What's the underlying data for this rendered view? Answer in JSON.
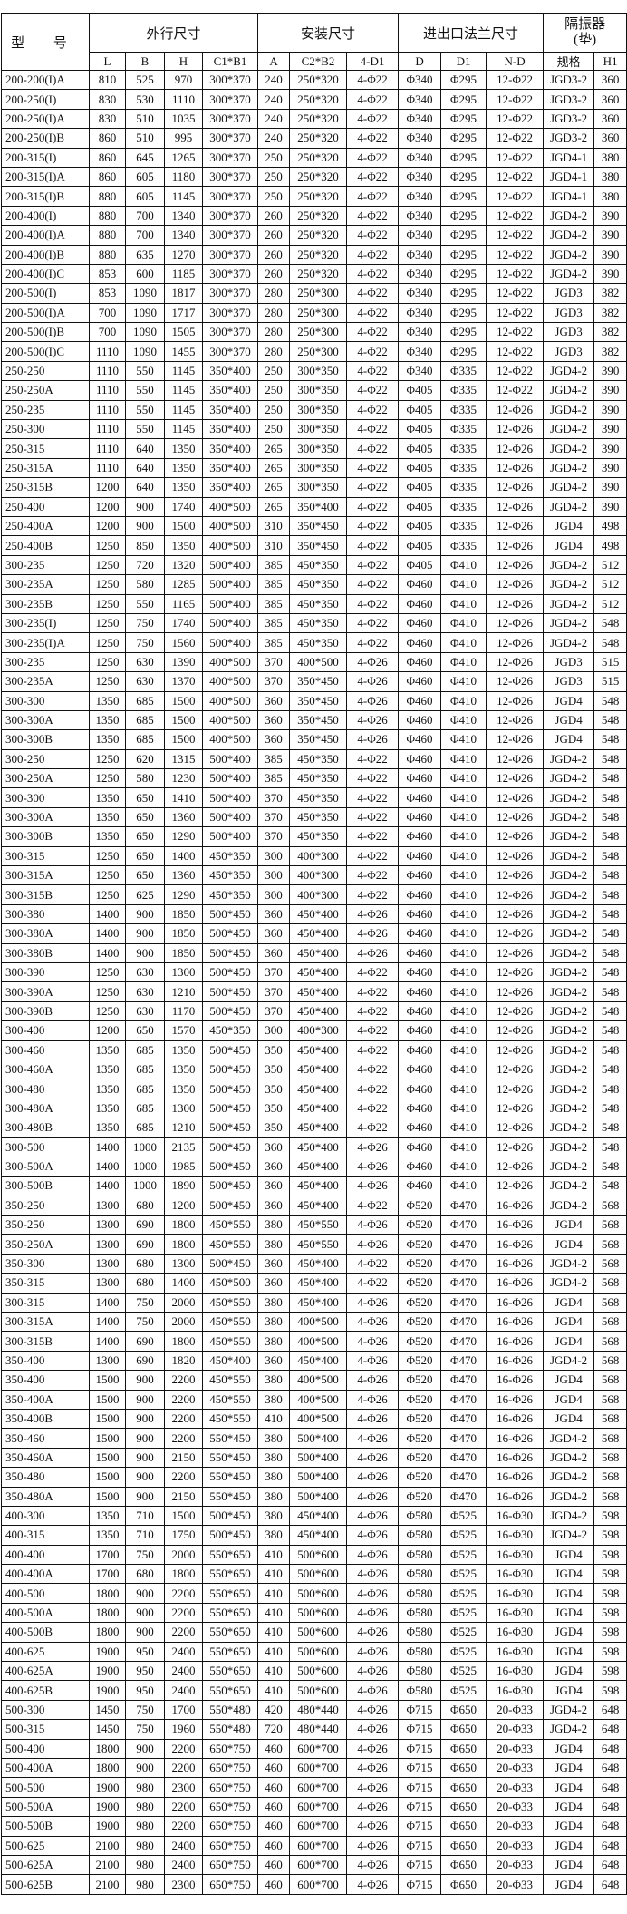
{
  "header": {
    "model": "型 号",
    "groups": [
      "外行尺寸",
      "安装尺寸",
      "进出口法兰尺寸",
      "隔振器",
      "(垫)"
    ],
    "columns": [
      "L",
      "B",
      "H",
      "C1*B1",
      "A",
      "C2*B2",
      "4-D1",
      "D",
      "D1",
      "N-D",
      "规格",
      "H1"
    ]
  },
  "rows": [
    [
      "200-200(I)A",
      "810",
      "525",
      "970",
      "300*370",
      "240",
      "250*320",
      "4-Φ22",
      "Φ340",
      "Φ295",
      "12-Φ22",
      "JGD3-2",
      "360"
    ],
    [
      "200-250(I)",
      "830",
      "530",
      "1110",
      "300*370",
      "240",
      "250*320",
      "4-Φ22",
      "Φ340",
      "Φ295",
      "12-Φ22",
      "JGD3-2",
      "360"
    ],
    [
      "200-250(I)A",
      "830",
      "510",
      "1035",
      "300*370",
      "240",
      "250*320",
      "4-Φ22",
      "Φ340",
      "Φ295",
      "12-Φ22",
      "JGD3-2",
      "360"
    ],
    [
      "200-250(I)B",
      "860",
      "510",
      "995",
      "300*370",
      "240",
      "250*320",
      "4-Φ22",
      "Φ340",
      "Φ295",
      "12-Φ22",
      "JGD3-2",
      "360"
    ],
    [
      "200-315(I)",
      "860",
      "645",
      "1265",
      "300*370",
      "250",
      "250*320",
      "4-Φ22",
      "Φ340",
      "Φ295",
      "12-Φ22",
      "JGD4-1",
      "380"
    ],
    [
      "200-315(I)A",
      "860",
      "605",
      "1180",
      "300*370",
      "250",
      "250*320",
      "4-Φ22",
      "Φ340",
      "Φ295",
      "12-Φ22",
      "JGD4-1",
      "380"
    ],
    [
      "200-315(I)B",
      "880",
      "605",
      "1145",
      "300*370",
      "250",
      "250*320",
      "4-Φ22",
      "Φ340",
      "Φ295",
      "12-Φ22",
      "JGD4-1",
      "380"
    ],
    [
      "200-400(I)",
      "880",
      "700",
      "1340",
      "300*370",
      "260",
      "250*320",
      "4-Φ22",
      "Φ340",
      "Φ295",
      "12-Φ22",
      "JGD4-2",
      "390"
    ],
    [
      "200-400(I)A",
      "880",
      "700",
      "1340",
      "300*370",
      "260",
      "250*320",
      "4-Φ22",
      "Φ340",
      "Φ295",
      "12-Φ22",
      "JGD4-2",
      "390"
    ],
    [
      "200-400(I)B",
      "880",
      "635",
      "1270",
      "300*370",
      "260",
      "250*320",
      "4-Φ22",
      "Φ340",
      "Φ295",
      "12-Φ22",
      "JGD4-2",
      "390"
    ],
    [
      "200-400(I)C",
      "853",
      "600",
      "1185",
      "300*370",
      "260",
      "250*320",
      "4-Φ22",
      "Φ340",
      "Φ295",
      "12-Φ22",
      "JGD4-2",
      "390"
    ],
    [
      "200-500(I)",
      "853",
      "1090",
      "1817",
      "300*370",
      "280",
      "250*300",
      "4-Φ22",
      "Φ340",
      "Φ295",
      "12-Φ22",
      "JGD3",
      "382"
    ],
    [
      "200-500(I)A",
      "700",
      "1090",
      "1717",
      "300*370",
      "280",
      "250*300",
      "4-Φ22",
      "Φ340",
      "Φ295",
      "12-Φ22",
      "JGD3",
      "382"
    ],
    [
      "200-500(I)B",
      "700",
      "1090",
      "1505",
      "300*370",
      "280",
      "250*300",
      "4-Φ22",
      "Φ340",
      "Φ295",
      "12-Φ22",
      "JGD3",
      "382"
    ],
    [
      "200-500(I)C",
      "1110",
      "1090",
      "1455",
      "300*370",
      "280",
      "250*300",
      "4-Φ22",
      "Φ340",
      "Φ295",
      "12-Φ22",
      "JGD3",
      "382"
    ],
    [
      "250-250",
      "1110",
      "550",
      "1145",
      "350*400",
      "250",
      "300*350",
      "4-Φ22",
      "Φ340",
      "Φ335",
      "12-Φ22",
      "JGD4-2",
      "390"
    ],
    [
      "250-250A",
      "1110",
      "550",
      "1145",
      "350*400",
      "250",
      "300*350",
      "4-Φ22",
      "Φ405",
      "Φ335",
      "12-Φ22",
      "JGD4-2",
      "390"
    ],
    [
      "250-235",
      "1110",
      "550",
      "1145",
      "350*400",
      "250",
      "300*350",
      "4-Φ22",
      "Φ405",
      "Φ335",
      "12-Φ26",
      "JGD4-2",
      "390"
    ],
    [
      "250-300",
      "1110",
      "550",
      "1145",
      "350*400",
      "250",
      "300*350",
      "4-Φ22",
      "Φ405",
      "Φ335",
      "12-Φ26",
      "JGD4-2",
      "390"
    ],
    [
      "250-315",
      "1110",
      "640",
      "1350",
      "350*400",
      "265",
      "300*350",
      "4-Φ22",
      "Φ405",
      "Φ335",
      "12-Φ26",
      "JGD4-2",
      "390"
    ],
    [
      "250-315A",
      "1110",
      "640",
      "1350",
      "350*400",
      "265",
      "300*350",
      "4-Φ22",
      "Φ405",
      "Φ335",
      "12-Φ26",
      "JGD4-2",
      "390"
    ],
    [
      "250-315B",
      "1200",
      "640",
      "1350",
      "350*400",
      "265",
      "300*350",
      "4-Φ22",
      "Φ405",
      "Φ335",
      "12-Φ26",
      "JGD4-2",
      "390"
    ],
    [
      "250-400",
      "1200",
      "900",
      "1740",
      "400*500",
      "265",
      "350*400",
      "4-Φ22",
      "Φ405",
      "Φ335",
      "12-Φ26",
      "JGD4-2",
      "390"
    ],
    [
      "250-400A",
      "1200",
      "900",
      "1500",
      "400*500",
      "310",
      "350*450",
      "4-Φ22",
      "Φ405",
      "Φ335",
      "12-Φ26",
      "JGD4",
      "498"
    ],
    [
      "250-400B",
      "1250",
      "850",
      "1350",
      "400*500",
      "310",
      "350*450",
      "4-Φ22",
      "Φ405",
      "Φ335",
      "12-Φ26",
      "JGD4",
      "498"
    ],
    [
      "300-235",
      "1250",
      "720",
      "1320",
      "500*400",
      "385",
      "450*350",
      "4-Φ22",
      "Φ405",
      "Φ410",
      "12-Φ26",
      "JGD4-2",
      "512"
    ],
    [
      "300-235A",
      "1250",
      "580",
      "1285",
      "500*400",
      "385",
      "450*350",
      "4-Φ22",
      "Φ460",
      "Φ410",
      "12-Φ26",
      "JGD4-2",
      "512"
    ],
    [
      "300-235B",
      "1250",
      "550",
      "1165",
      "500*400",
      "385",
      "450*350",
      "4-Φ22",
      "Φ460",
      "Φ410",
      "12-Φ26",
      "JGD4-2",
      "512"
    ],
    [
      "300-235(I)",
      "1250",
      "750",
      "1740",
      "500*400",
      "385",
      "450*350",
      "4-Φ22",
      "Φ460",
      "Φ410",
      "12-Φ26",
      "JGD4-2",
      "548"
    ],
    [
      "300-235(I)A",
      "1250",
      "750",
      "1560",
      "500*400",
      "385",
      "450*350",
      "4-Φ22",
      "Φ460",
      "Φ410",
      "12-Φ26",
      "JGD4-2",
      "548"
    ],
    [
      "300-235",
      "1250",
      "630",
      "1390",
      "400*500",
      "370",
      "400*500",
      "4-Φ26",
      "Φ460",
      "Φ410",
      "12-Φ26",
      "JGD3",
      "515"
    ],
    [
      "300-235A",
      "1250",
      "630",
      "1370",
      "400*500",
      "370",
      "350*450",
      "4-Φ26",
      "Φ460",
      "Φ410",
      "12-Φ26",
      "JGD3",
      "515"
    ],
    [
      "300-300",
      "1350",
      "685",
      "1500",
      "400*500",
      "360",
      "350*450",
      "4-Φ26",
      "Φ460",
      "Φ410",
      "12-Φ26",
      "JGD4",
      "548"
    ],
    [
      "300-300A",
      "1350",
      "685",
      "1500",
      "400*500",
      "360",
      "350*450",
      "4-Φ26",
      "Φ460",
      "Φ410",
      "12-Φ26",
      "JGD4",
      "548"
    ],
    [
      "300-300B",
      "1350",
      "685",
      "1500",
      "400*500",
      "360",
      "350*450",
      "4-Φ26",
      "Φ460",
      "Φ410",
      "12-Φ26",
      "JGD4",
      "548"
    ],
    [
      "300-250",
      "1250",
      "620",
      "1315",
      "500*400",
      "385",
      "450*350",
      "4-Φ22",
      "Φ460",
      "Φ410",
      "12-Φ26",
      "JGD4-2",
      "548"
    ],
    [
      "300-250A",
      "1250",
      "580",
      "1230",
      "500*400",
      "385",
      "450*350",
      "4-Φ22",
      "Φ460",
      "Φ410",
      "12-Φ26",
      "JGD4-2",
      "548"
    ],
    [
      "300-300",
      "1350",
      "650",
      "1410",
      "500*400",
      "370",
      "450*350",
      "4-Φ22",
      "Φ460",
      "Φ410",
      "12-Φ26",
      "JGD4-2",
      "548"
    ],
    [
      "300-300A",
      "1350",
      "650",
      "1360",
      "500*400",
      "370",
      "450*350",
      "4-Φ22",
      "Φ460",
      "Φ410",
      "12-Φ26",
      "JGD4-2",
      "548"
    ],
    [
      "300-300B",
      "1350",
      "650",
      "1290",
      "500*400",
      "370",
      "450*350",
      "4-Φ22",
      "Φ460",
      "Φ410",
      "12-Φ26",
      "JGD4-2",
      "548"
    ],
    [
      "300-315",
      "1250",
      "650",
      "1400",
      "450*350",
      "300",
      "400*300",
      "4-Φ22",
      "Φ460",
      "Φ410",
      "12-Φ26",
      "JGD4-2",
      "548"
    ],
    [
      "300-315A",
      "1250",
      "650",
      "1360",
      "450*350",
      "300",
      "400*300",
      "4-Φ22",
      "Φ460",
      "Φ410",
      "12-Φ26",
      "JGD4-2",
      "548"
    ],
    [
      "300-315B",
      "1250",
      "625",
      "1290",
      "450*350",
      "300",
      "400*300",
      "4-Φ22",
      "Φ460",
      "Φ410",
      "12-Φ26",
      "JGD4-2",
      "548"
    ],
    [
      "300-380",
      "1400",
      "900",
      "1850",
      "500*450",
      "360",
      "450*400",
      "4-Φ26",
      "Φ460",
      "Φ410",
      "12-Φ26",
      "JGD4-2",
      "548"
    ],
    [
      "300-380A",
      "1400",
      "900",
      "1850",
      "500*450",
      "360",
      "450*400",
      "4-Φ26",
      "Φ460",
      "Φ410",
      "12-Φ26",
      "JGD4-2",
      "548"
    ],
    [
      "300-380B",
      "1400",
      "900",
      "1850",
      "500*450",
      "360",
      "450*400",
      "4-Φ26",
      "Φ460",
      "Φ410",
      "12-Φ26",
      "JGD4-2",
      "548"
    ],
    [
      "300-390",
      "1250",
      "630",
      "1300",
      "500*450",
      "370",
      "450*400",
      "4-Φ22",
      "Φ460",
      "Φ410",
      "12-Φ26",
      "JGD4-2",
      "548"
    ],
    [
      "300-390A",
      "1250",
      "630",
      "1210",
      "500*450",
      "370",
      "450*400",
      "4-Φ22",
      "Φ460",
      "Φ410",
      "12-Φ26",
      "JGD4-2",
      "548"
    ],
    [
      "300-390B",
      "1250",
      "630",
      "1170",
      "500*450",
      "370",
      "450*400",
      "4-Φ22",
      "Φ460",
      "Φ410",
      "12-Φ26",
      "JGD4-2",
      "548"
    ],
    [
      "300-400",
      "1200",
      "650",
      "1570",
      "450*350",
      "300",
      "400*300",
      "4-Φ22",
      "Φ460",
      "Φ410",
      "12-Φ26",
      "JGD4-2",
      "548"
    ],
    [
      "300-460",
      "1350",
      "685",
      "1350",
      "500*450",
      "350",
      "450*400",
      "4-Φ22",
      "Φ460",
      "Φ410",
      "12-Φ26",
      "JGD4-2",
      "548"
    ],
    [
      "300-460A",
      "1350",
      "685",
      "1350",
      "500*450",
      "350",
      "450*400",
      "4-Φ22",
      "Φ460",
      "Φ410",
      "12-Φ26",
      "JGD4-2",
      "548"
    ],
    [
      "300-480",
      "1350",
      "685",
      "1350",
      "500*450",
      "350",
      "450*400",
      "4-Φ22",
      "Φ460",
      "Φ410",
      "12-Φ26",
      "JGD4-2",
      "548"
    ],
    [
      "300-480A",
      "1350",
      "685",
      "1300",
      "500*450",
      "350",
      "450*400",
      "4-Φ22",
      "Φ460",
      "Φ410",
      "12-Φ26",
      "JGD4-2",
      "548"
    ],
    [
      "300-480B",
      "1350",
      "685",
      "1210",
      "500*450",
      "350",
      "450*400",
      "4-Φ22",
      "Φ460",
      "Φ410",
      "12-Φ26",
      "JGD4-2",
      "548"
    ],
    [
      "300-500",
      "1400",
      "1000",
      "2135",
      "500*450",
      "360",
      "450*400",
      "4-Φ26",
      "Φ460",
      "Φ410",
      "12-Φ26",
      "JGD4-2",
      "548"
    ],
    [
      "300-500A",
      "1400",
      "1000",
      "1985",
      "500*450",
      "360",
      "450*400",
      "4-Φ26",
      "Φ460",
      "Φ410",
      "12-Φ26",
      "JGD4-2",
      "548"
    ],
    [
      "300-500B",
      "1400",
      "1000",
      "1890",
      "500*450",
      "360",
      "450*400",
      "4-Φ26",
      "Φ460",
      "Φ410",
      "12-Φ26",
      "JGD4-2",
      "548"
    ],
    [
      "350-250",
      "1300",
      "680",
      "1200",
      "500*450",
      "360",
      "450*400",
      "4-Φ22",
      "Φ520",
      "Φ470",
      "16-Φ26",
      "JGD4-2",
      "568"
    ],
    [
      "350-250",
      "1300",
      "690",
      "1800",
      "450*550",
      "380",
      "450*550",
      "4-Φ26",
      "Φ520",
      "Φ470",
      "16-Φ26",
      "JGD4",
      "568"
    ],
    [
      "350-250A",
      "1300",
      "690",
      "1800",
      "450*550",
      "380",
      "450*550",
      "4-Φ26",
      "Φ520",
      "Φ470",
      "16-Φ26",
      "JGD4",
      "568"
    ],
    [
      "350-300",
      "1300",
      "680",
      "1300",
      "500*450",
      "360",
      "450*400",
      "4-Φ22",
      "Φ520",
      "Φ470",
      "16-Φ26",
      "JGD4-2",
      "568"
    ],
    [
      "350-315",
      "1300",
      "680",
      "1400",
      "450*500",
      "360",
      "450*400",
      "4-Φ22",
      "Φ520",
      "Φ470",
      "16-Φ26",
      "JGD4-2",
      "568"
    ],
    [
      "300-315",
      "1400",
      "750",
      "2000",
      "450*550",
      "380",
      "450*400",
      "4-Φ26",
      "Φ520",
      "Φ470",
      "16-Φ26",
      "JGD4",
      "568"
    ],
    [
      "300-315A",
      "1400",
      "750",
      "2000",
      "450*550",
      "380",
      "400*500",
      "4-Φ26",
      "Φ520",
      "Φ470",
      "16-Φ26",
      "JGD4",
      "568"
    ],
    [
      "300-315B",
      "1400",
      "690",
      "1800",
      "450*550",
      "380",
      "400*500",
      "4-Φ26",
      "Φ520",
      "Φ470",
      "16-Φ26",
      "JGD4",
      "568"
    ],
    [
      "350-400",
      "1300",
      "690",
      "1820",
      "450*400",
      "360",
      "450*400",
      "4-Φ26",
      "Φ520",
      "Φ470",
      "16-Φ26",
      "JGD4-2",
      "568"
    ],
    [
      "350-400",
      "1500",
      "900",
      "2200",
      "450*550",
      "380",
      "400*500",
      "4-Φ26",
      "Φ520",
      "Φ470",
      "16-Φ26",
      "JGD4",
      "568"
    ],
    [
      "350-400A",
      "1500",
      "900",
      "2200",
      "450*550",
      "380",
      "400*500",
      "4-Φ26",
      "Φ520",
      "Φ470",
      "16-Φ26",
      "JGD4",
      "568"
    ],
    [
      "350-400B",
      "1500",
      "900",
      "2200",
      "450*550",
      "410",
      "400*500",
      "4-Φ26",
      "Φ520",
      "Φ470",
      "16-Φ26",
      "JGD4",
      "568"
    ],
    [
      "350-460",
      "1500",
      "900",
      "2200",
      "550*450",
      "380",
      "500*400",
      "4-Φ26",
      "Φ520",
      "Φ470",
      "16-Φ26",
      "JGD4-2",
      "568"
    ],
    [
      "350-460A",
      "1500",
      "900",
      "2150",
      "550*450",
      "380",
      "500*400",
      "4-Φ26",
      "Φ520",
      "Φ470",
      "16-Φ26",
      "JGD4-2",
      "568"
    ],
    [
      "350-480",
      "1500",
      "900",
      "2200",
      "550*450",
      "380",
      "500*400",
      "4-Φ26",
      "Φ520",
      "Φ470",
      "16-Φ26",
      "JGD4-2",
      "568"
    ],
    [
      "350-480A",
      "1500",
      "900",
      "2150",
      "550*450",
      "380",
      "500*400",
      "4-Φ26",
      "Φ520",
      "Φ470",
      "16-Φ26",
      "JGD4-2",
      "568"
    ],
    [
      "400-300",
      "1350",
      "710",
      "1500",
      "500*450",
      "380",
      "450*400",
      "4-Φ26",
      "Φ580",
      "Φ525",
      "16-Φ30",
      "JGD4-2",
      "598"
    ],
    [
      "400-315",
      "1350",
      "710",
      "1750",
      "500*450",
      "380",
      "450*400",
      "4-Φ26",
      "Φ580",
      "Φ525",
      "16-Φ30",
      "JGD4-2",
      "598"
    ],
    [
      "400-400",
      "1700",
      "750",
      "2000",
      "550*650",
      "410",
      "500*600",
      "4-Φ26",
      "Φ580",
      "Φ525",
      "16-Φ30",
      "JGD4",
      "598"
    ],
    [
      "400-400A",
      "1700",
      "680",
      "1800",
      "550*650",
      "410",
      "500*600",
      "4-Φ26",
      "Φ580",
      "Φ525",
      "16-Φ30",
      "JGD4",
      "598"
    ],
    [
      "400-500",
      "1800",
      "900",
      "2200",
      "550*650",
      "410",
      "500*600",
      "4-Φ26",
      "Φ580",
      "Φ525",
      "16-Φ30",
      "JGD4",
      "598"
    ],
    [
      "400-500A",
      "1800",
      "900",
      "2200",
      "550*650",
      "410",
      "500*600",
      "4-Φ26",
      "Φ580",
      "Φ525",
      "16-Φ30",
      "JGD4",
      "598"
    ],
    [
      "400-500B",
      "1800",
      "900",
      "2200",
      "550*650",
      "410",
      "500*600",
      "4-Φ26",
      "Φ580",
      "Φ525",
      "16-Φ30",
      "JGD4",
      "598"
    ],
    [
      "400-625",
      "1900",
      "950",
      "2400",
      "550*650",
      "410",
      "500*600",
      "4-Φ26",
      "Φ580",
      "Φ525",
      "16-Φ30",
      "JGD4",
      "598"
    ],
    [
      "400-625A",
      "1900",
      "950",
      "2400",
      "550*650",
      "410",
      "500*600",
      "4-Φ26",
      "Φ580",
      "Φ525",
      "16-Φ30",
      "JGD4",
      "598"
    ],
    [
      "400-625B",
      "1900",
      "950",
      "2400",
      "550*650",
      "410",
      "500*600",
      "4-Φ26",
      "Φ580",
      "Φ525",
      "16-Φ30",
      "JGD4",
      "598"
    ],
    [
      "500-300",
      "1450",
      "750",
      "1700",
      "550*480",
      "420",
      "480*440",
      "4-Φ26",
      "Φ715",
      "Φ650",
      "20-Φ33",
      "JGD4-2",
      "648"
    ],
    [
      "500-315",
      "1450",
      "750",
      "1960",
      "550*480",
      "720",
      "480*440",
      "4-Φ26",
      "Φ715",
      "Φ650",
      "20-Φ33",
      "JGD4-2",
      "648"
    ],
    [
      "500-400",
      "1800",
      "900",
      "2200",
      "650*750",
      "460",
      "600*700",
      "4-Φ26",
      "Φ715",
      "Φ650",
      "20-Φ33",
      "JGD4",
      "648"
    ],
    [
      "500-400A",
      "1800",
      "900",
      "2200",
      "650*750",
      "460",
      "600*700",
      "4-Φ26",
      "Φ715",
      "Φ650",
      "20-Φ33",
      "JGD4",
      "648"
    ],
    [
      "500-500",
      "1900",
      "980",
      "2300",
      "650*750",
      "460",
      "600*700",
      "4-Φ26",
      "Φ715",
      "Φ650",
      "20-Φ33",
      "JGD4",
      "648"
    ],
    [
      "500-500A",
      "1900",
      "980",
      "2200",
      "650*750",
      "460",
      "600*700",
      "4-Φ26",
      "Φ715",
      "Φ650",
      "20-Φ33",
      "JGD4",
      "648"
    ],
    [
      "500-500B",
      "1900",
      "980",
      "2200",
      "650*750",
      "460",
      "600*700",
      "4-Φ26",
      "Φ715",
      "Φ650",
      "20-Φ33",
      "JGD4",
      "648"
    ],
    [
      "500-625",
      "2100",
      "980",
      "2400",
      "650*750",
      "460",
      "600*700",
      "4-Φ26",
      "Φ715",
      "Φ650",
      "20-Φ33",
      "JGD4",
      "648"
    ],
    [
      "500-625A",
      "2100",
      "980",
      "2400",
      "650*750",
      "460",
      "600*700",
      "4-Φ26",
      "Φ715",
      "Φ650",
      "20-Φ33",
      "JGD4",
      "648"
    ],
    [
      "500-625B",
      "2100",
      "980",
      "2300",
      "650*750",
      "460",
      "600*700",
      "4-Φ26",
      "Φ715",
      "Φ650",
      "20-Φ33",
      "JGD4",
      "648"
    ]
  ]
}
